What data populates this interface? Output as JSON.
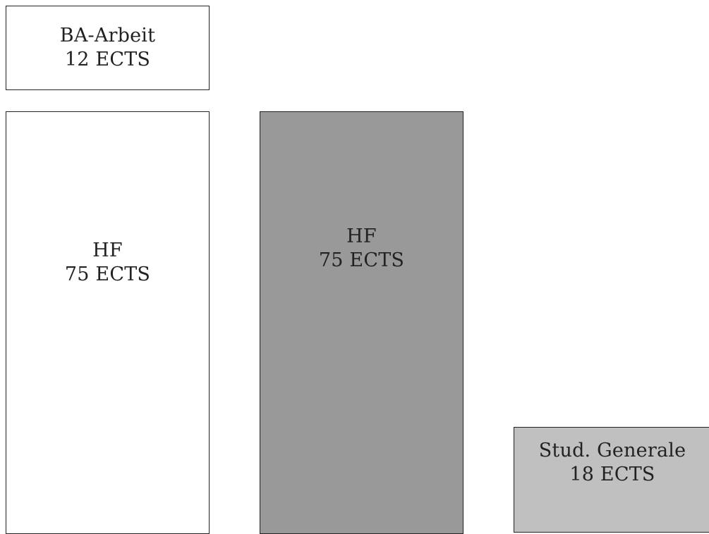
{
  "blocks": {
    "ba_arbeit": {
      "name": "BA-Arbeit",
      "credits": "12 ECTS",
      "fill": "#ffffff"
    },
    "hf_left": {
      "name": "HF",
      "credits": "75 ECTS",
      "fill": "#ffffff"
    },
    "hf_right": {
      "name": "HF",
      "credits": "75 ECTS",
      "fill": "#999999"
    },
    "studium_generale": {
      "name": "Stud. Generale",
      "credits": "18 ECTS",
      "fill": "#c0c0c0"
    }
  }
}
